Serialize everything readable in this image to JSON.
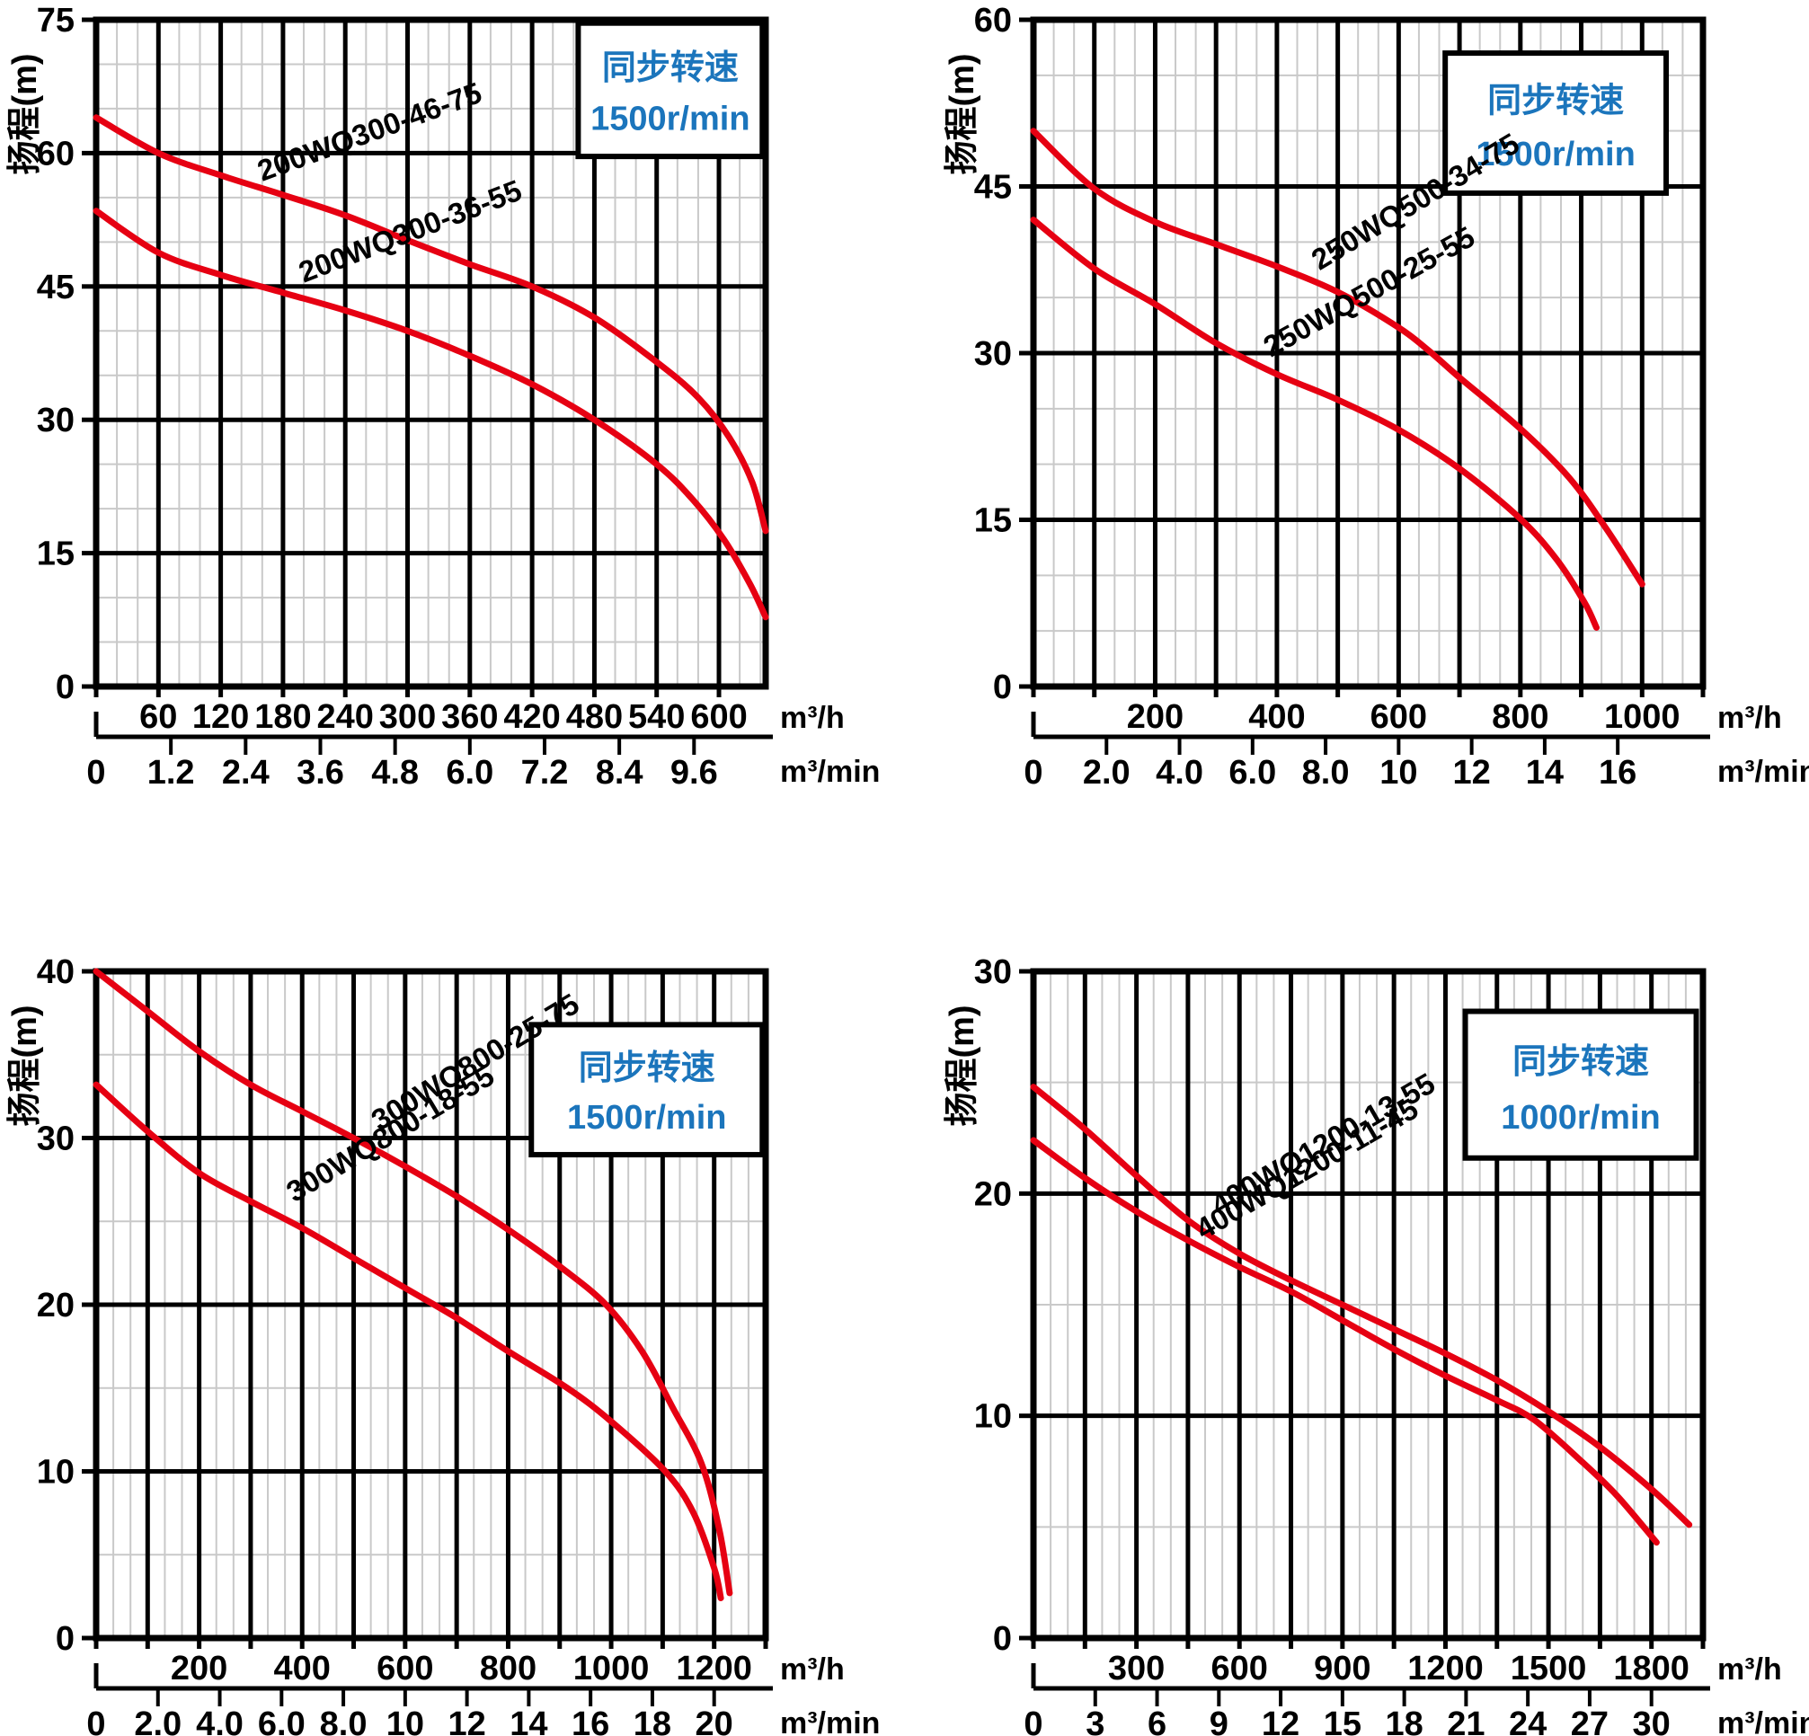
{
  "page": {
    "background": "#ffffff"
  },
  "style": {
    "curve_color": "#e60012",
    "legend_text_color": "#1b75bc",
    "major_grid_color": "#000000",
    "minor_grid_color": "#c9c9c9",
    "text_color": "#000000",
    "plot_background": "#ffffff"
  },
  "chart_data": [
    {
      "id": "200wq300",
      "type": "line",
      "position": "top-left",
      "y_axis": {
        "title": "扬程(m)",
        "min": 0,
        "max": 75,
        "major_step": 15,
        "minor_divisions": 3,
        "tick_labels": [
          "0",
          "15",
          "30",
          "45",
          "60",
          "75"
        ]
      },
      "x_axis": {
        "min": 0,
        "max": 645,
        "major_step": 60,
        "minor_divisions": 3,
        "unit": "m³/h",
        "tick_labels": [
          "60",
          "120",
          "180",
          "240",
          "300",
          "360",
          "420",
          "480",
          "540",
          "600"
        ]
      },
      "secondary_x_axis": {
        "unit": "m³/min",
        "tick_labels": [
          "0",
          "1.2",
          "2.4",
          "3.6",
          "4.8",
          "6.0",
          "7.2",
          "8.4",
          "9.6"
        ]
      },
      "legend": {
        "lines": [
          "同步转速",
          "1500r/min"
        ],
        "box": {
          "x": 0.72,
          "y": 0.005,
          "w": 0.275,
          "h": 0.2
        }
      },
      "series": [
        {
          "name": "200WQ300-46-75",
          "points": [
            [
              0,
              64
            ],
            [
              60,
              60
            ],
            [
              120,
              57.5
            ],
            [
              180,
              55.3
            ],
            [
              240,
              53
            ],
            [
              300,
              50.2
            ],
            [
              360,
              47.5
            ],
            [
              420,
              45
            ],
            [
              480,
              41.5
            ],
            [
              540,
              36.5
            ],
            [
              580,
              32.5
            ],
            [
              610,
              28
            ],
            [
              632,
              23
            ],
            [
              645,
              17.5
            ]
          ],
          "label": {
            "x": 160,
            "y": 56.8,
            "angle": -20
          }
        },
        {
          "name": "200WQ300-36-55",
          "points": [
            [
              0,
              53.5
            ],
            [
              60,
              48.8
            ],
            [
              120,
              46.3
            ],
            [
              180,
              44.3
            ],
            [
              240,
              42.3
            ],
            [
              300,
              40
            ],
            [
              360,
              37.2
            ],
            [
              420,
              34
            ],
            [
              480,
              30
            ],
            [
              540,
              25
            ],
            [
              575,
              21
            ],
            [
              605,
              16.5
            ],
            [
              630,
              11.5
            ],
            [
              645,
              7.8
            ]
          ],
          "label": {
            "x": 200,
            "y": 45.4,
            "angle": -21
          }
        }
      ]
    },
    {
      "id": "250wq500",
      "type": "line",
      "position": "top-right",
      "y_axis": {
        "title": "扬程(m)",
        "min": 0,
        "max": 60,
        "major_step": 15,
        "minor_divisions": 3,
        "tick_labels": [
          "0",
          "15",
          "30",
          "45",
          "60"
        ]
      },
      "x_axis": {
        "min": 0,
        "max": 1100,
        "major_step": 100,
        "minor_divisions": 3,
        "unit": "m³/h",
        "tick_labels": [
          "200",
          "400",
          "600",
          "800",
          "1000"
        ]
      },
      "secondary_x_axis": {
        "unit": "m³/min",
        "tick_labels": [
          "0",
          "2.0",
          "4.0",
          "6.0",
          "8.0",
          "10",
          "12",
          "14",
          "16"
        ]
      },
      "legend": {
        "lines": [
          "同步转速",
          "1500r/min"
        ],
        "box": {
          "x": 0.615,
          "y": 0.05,
          "w": 0.33,
          "h": 0.21
        }
      },
      "series": [
        {
          "name": "250WQ500-34-75",
          "points": [
            [
              0,
              50
            ],
            [
              100,
              44.8
            ],
            [
              200,
              41.8
            ],
            [
              300,
              39.8
            ],
            [
              400,
              37.8
            ],
            [
              500,
              35.5
            ],
            [
              600,
              32.3
            ],
            [
              650,
              30.2
            ],
            [
              700,
              27.8
            ],
            [
              800,
              23.2
            ],
            [
              880,
              18.8
            ],
            [
              940,
              14.3
            ],
            [
              1000,
              9.2
            ]
          ],
          "label": {
            "x": 470,
            "y": 37.4,
            "angle": -31
          }
        },
        {
          "name": "250WQ500-25-55",
          "points": [
            [
              0,
              42
            ],
            [
              100,
              37.6
            ],
            [
              200,
              34.4
            ],
            [
              300,
              30.9
            ],
            [
              400,
              28.1
            ],
            [
              500,
              25.8
            ],
            [
              600,
              23.1
            ],
            [
              700,
              19.6
            ],
            [
              800,
              15.1
            ],
            [
              860,
              11.4
            ],
            [
              905,
              7.6
            ],
            [
              925,
              5.3
            ]
          ],
          "label": {
            "x": 390,
            "y": 29.6,
            "angle": -29
          }
        }
      ]
    },
    {
      "id": "300wq800",
      "type": "line",
      "position": "bottom-left",
      "y_axis": {
        "title": "扬程(m)",
        "min": 0,
        "max": 40,
        "major_step": 10,
        "minor_divisions": 2,
        "tick_labels": [
          "0",
          "10",
          "20",
          "30",
          "40"
        ]
      },
      "x_axis": {
        "min": 0,
        "max": 1300,
        "major_step": 100,
        "minor_divisions": 3,
        "unit": "m³/h",
        "tick_labels": [
          "200",
          "400",
          "600",
          "800",
          "1000",
          "1200"
        ]
      },
      "secondary_x_axis": {
        "unit": "m³/min",
        "tick_labels": [
          "0",
          "2.0",
          "4.0",
          "6.0",
          "8.0",
          "10",
          "12",
          "14",
          "16",
          "18",
          "20"
        ]
      },
      "legend": {
        "lines": [
          "同步转速",
          "1500r/min"
        ],
        "box": {
          "x": 0.65,
          "y": 0.08,
          "w": 0.345,
          "h": 0.195
        }
      },
      "series": [
        {
          "name": "300WQ800-25-75",
          "points": [
            [
              0,
              40
            ],
            [
              100,
              37.6
            ],
            [
              200,
              35.2
            ],
            [
              300,
              33.2
            ],
            [
              400,
              31.6
            ],
            [
              500,
              30
            ],
            [
              600,
              28.3
            ],
            [
              700,
              26.5
            ],
            [
              800,
              24.5
            ],
            [
              900,
              22.3
            ],
            [
              990,
              20
            ],
            [
              1060,
              17.2
            ],
            [
              1120,
              13.8
            ],
            [
              1175,
              10.5
            ],
            [
              1210,
              6.5
            ],
            [
              1230,
              2.7
            ]
          ],
          "label": {
            "x": 550,
            "y": 30.4,
            "angle": -31
          }
        },
        {
          "name": "300WQ800-18-55",
          "points": [
            [
              0,
              33.2
            ],
            [
              100,
              30.4
            ],
            [
              200,
              27.9
            ],
            [
              300,
              26.2
            ],
            [
              400,
              24.6
            ],
            [
              500,
              22.8
            ],
            [
              600,
              21
            ],
            [
              700,
              19.2
            ],
            [
              800,
              17.2
            ],
            [
              915,
              15
            ],
            [
              1000,
              13
            ],
            [
              1105,
              10
            ],
            [
              1160,
              7.5
            ],
            [
              1200,
              4.2
            ],
            [
              1213,
              2.4
            ]
          ],
          "label": {
            "x": 385,
            "y": 26.1,
            "angle": -31
          }
        }
      ]
    },
    {
      "id": "400wq1200",
      "type": "line",
      "position": "bottom-right",
      "y_axis": {
        "title": "扬程(m)",
        "min": 0,
        "max": 30,
        "major_step": 10,
        "minor_divisions": 2,
        "tick_labels": [
          "0",
          "10",
          "20",
          "30"
        ]
      },
      "x_axis": {
        "min": 0,
        "max": 1950,
        "major_step": 150,
        "minor_divisions": 3,
        "unit": "m³/h",
        "tick_labels": [
          "300",
          "600",
          "900",
          "1200",
          "1500",
          "1800"
        ]
      },
      "secondary_x_axis": {
        "unit": "m³/min",
        "tick_labels": [
          "0",
          "3",
          "6",
          "9",
          "12",
          "15",
          "18",
          "21",
          "24",
          "27",
          "30"
        ]
      },
      "legend": {
        "lines": [
          "同步转速",
          "1000r/min"
        ],
        "box": {
          "x": 0.645,
          "y": 0.06,
          "w": 0.345,
          "h": 0.22
        }
      },
      "series": [
        {
          "name": "400WQ1200-13-55",
          "points": [
            [
              0,
              24.8
            ],
            [
              150,
              22.9
            ],
            [
              300,
              20.8
            ],
            [
              450,
              18.8
            ],
            [
              600,
              17.3
            ],
            [
              750,
              16.1
            ],
            [
              900,
              15
            ],
            [
              1050,
              13.9
            ],
            [
              1200,
              12.8
            ],
            [
              1350,
              11.6
            ],
            [
              1500,
              10.2
            ],
            [
              1650,
              8.6
            ],
            [
              1800,
              6.7
            ],
            [
              1910,
              5.1
            ]
          ],
          "label": {
            "x": 540,
            "y": 19.0,
            "angle": -30
          }
        },
        {
          "name": "400WQ1200-11-45",
          "points": [
            [
              0,
              22.4
            ],
            [
              150,
              20.7
            ],
            [
              300,
              19.2
            ],
            [
              450,
              17.9
            ],
            [
              600,
              16.7
            ],
            [
              750,
              15.6
            ],
            [
              900,
              14.3
            ],
            [
              1050,
              13
            ],
            [
              1200,
              11.8
            ],
            [
              1350,
              10.7
            ],
            [
              1460,
              9.8
            ],
            [
              1600,
              7.9
            ],
            [
              1700,
              6.4
            ],
            [
              1815,
              4.3
            ]
          ],
          "label": {
            "x": 495,
            "y": 17.9,
            "angle": -30
          }
        }
      ]
    }
  ]
}
